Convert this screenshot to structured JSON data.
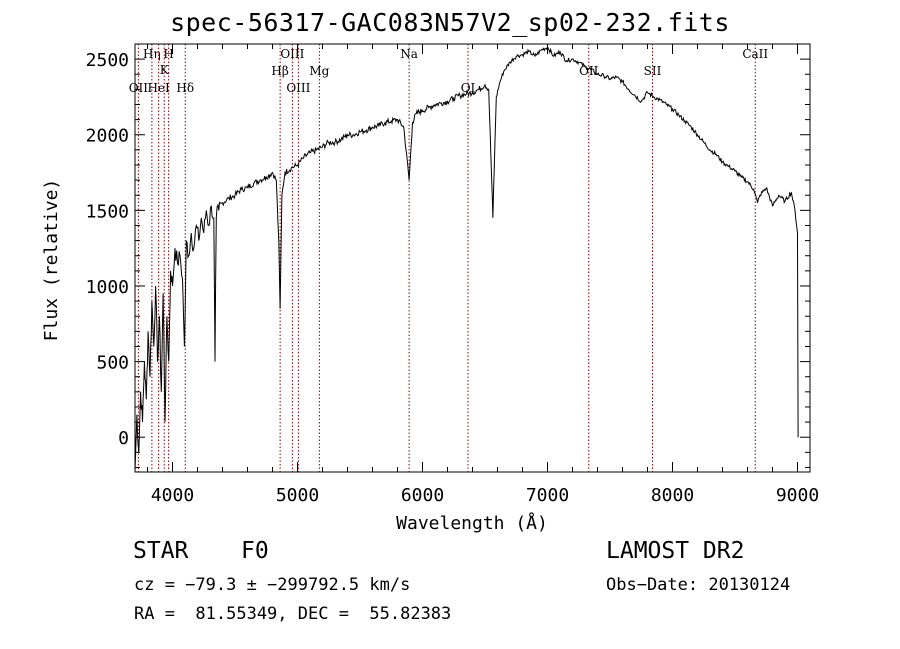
{
  "chart_data": {
    "type": "line",
    "title": "spec-56317-GAC083N57V2_sp02-232.fits",
    "xlabel": "Wavelength (Å)",
    "ylabel": "Flux (relative)",
    "xlim": [
      3700,
      9100
    ],
    "ylim": [
      -230,
      2600
    ],
    "xticks": [
      4000,
      5000,
      6000,
      7000,
      8000,
      9000
    ],
    "xtick_labels": [
      "4000",
      "5000",
      "6000",
      "7000",
      "8000",
      "9000"
    ],
    "yticks": [
      0,
      500,
      1000,
      1500,
      2000,
      2500
    ],
    "ytick_labels": [
      "0",
      "500",
      "1000",
      "1500",
      "2000",
      "2500"
    ],
    "line_color": "#000000",
    "marker_color": "#8b0000",
    "series": [
      {
        "name": "flux",
        "x": [
          3700,
          3715,
          3730,
          3745,
          3760,
          3775,
          3790,
          3805,
          3820,
          3835,
          3850,
          3865,
          3880,
          3895,
          3910,
          3925,
          3940,
          3955,
          3970,
          3985,
          4000,
          4020,
          4040,
          4060,
          4080,
          4095,
          4101,
          4110,
          4130,
          4150,
          4170,
          4190,
          4210,
          4230,
          4250,
          4270,
          4290,
          4310,
          4330,
          4340,
          4350,
          4370,
          4400,
          4450,
          4500,
          4550,
          4600,
          4650,
          4700,
          4750,
          4800,
          4830,
          4850,
          4861,
          4875,
          4900,
          4950,
          5000,
          5050,
          5100,
          5150,
          5200,
          5250,
          5300,
          5350,
          5400,
          5450,
          5500,
          5550,
          5600,
          5650,
          5700,
          5750,
          5800,
          5850,
          5893,
          5920,
          5950,
          6000,
          6050,
          6100,
          6150,
          6200,
          6250,
          6300,
          6350,
          6400,
          6450,
          6500,
          6530,
          6563,
          6590,
          6620,
          6650,
          6700,
          6750,
          6800,
          6850,
          6900,
          6950,
          7000,
          7050,
          7100,
          7150,
          7200,
          7250,
          7300,
          7350,
          7400,
          7450,
          7500,
          7550,
          7600,
          7650,
          7700,
          7750,
          7800,
          7850,
          7900,
          7950,
          8000,
          8050,
          8100,
          8150,
          8200,
          8250,
          8300,
          8350,
          8400,
          8450,
          8500,
          8550,
          8600,
          8650,
          8680,
          8700,
          8750,
          8800,
          8850,
          8900,
          8950,
          8980,
          9000,
          9005
        ],
        "y": [
          -230,
          150,
          -100,
          300,
          100,
          500,
          250,
          700,
          400,
          900,
          600,
          1000,
          500,
          800,
          300,
          950,
          100,
          800,
          500,
          1100,
          1000,
          1250,
          1150,
          1200,
          1050,
          600,
          800,
          1300,
          1200,
          1350,
          1250,
          1400,
          1300,
          1450,
          1350,
          1500,
          1400,
          1530,
          1450,
          500,
          1450,
          1500,
          1550,
          1580,
          1600,
          1640,
          1650,
          1680,
          1700,
          1720,
          1750,
          1700,
          1300,
          850,
          1600,
          1750,
          1780,
          1800,
          1850,
          1880,
          1900,
          1920,
          1950,
          1950,
          1970,
          2000,
          2000,
          2020,
          2030,
          2050,
          2060,
          2080,
          2090,
          2100,
          2050,
          1700,
          2080,
          2140,
          2160,
          2180,
          2200,
          2210,
          2220,
          2240,
          2260,
          2270,
          2280,
          2300,
          2330,
          2300,
          1450,
          2250,
          2350,
          2420,
          2480,
          2520,
          2530,
          2550,
          2520,
          2560,
          2580,
          2520,
          2550,
          2490,
          2500,
          2480,
          2450,
          2430,
          2400,
          2390,
          2370,
          2380,
          2350,
          2300,
          2260,
          2220,
          2280,
          2250,
          2230,
          2200,
          2170,
          2130,
          2090,
          2050,
          2000,
          1950,
          1900,
          1870,
          1820,
          1790,
          1760,
          1720,
          1690,
          1640,
          1550,
          1600,
          1650,
          1530,
          1600,
          1560,
          1620,
          1500,
          1350,
          0
        ]
      }
    ],
    "line_markers": [
      {
        "label": "OII",
        "wavelength": 3727,
        "font": "serif"
      },
      {
        "label": "Hη",
        "wavelength": 3835,
        "font": "serif"
      },
      {
        "label": "HeI",
        "wavelength": 3889,
        "font": "serif"
      },
      {
        "label": "K",
        "wavelength": 3934,
        "font": "serif"
      },
      {
        "label": "H",
        "wavelength": 3969,
        "font": "serif"
      },
      {
        "label": "Hδ",
        "wavelength": 4102,
        "font": "serif"
      },
      {
        "label": "Hβ",
        "wavelength": 4861,
        "font": "serif"
      },
      {
        "label": "OIII",
        "wavelength": 4959,
        "font": "serif"
      },
      {
        "label": "OIII",
        "wavelength": 5007,
        "font": "serif"
      },
      {
        "label": "Mg",
        "wavelength": 5175,
        "font": "serif"
      },
      {
        "label": "Na",
        "wavelength": 5893,
        "font": "serif"
      },
      {
        "label": "OI",
        "wavelength": 6364,
        "font": "serif"
      },
      {
        "label": "OII",
        "wavelength": 7330,
        "font": "serif"
      },
      {
        "label": "SII",
        "wavelength": 7840,
        "font": "serif"
      },
      {
        "label": "CaII",
        "wavelength": 8662,
        "font": "serif"
      }
    ]
  },
  "info": {
    "object_class": "STAR",
    "subclass": "F0",
    "survey": "LAMOST DR2",
    "cz": "cz = −79.3 ± −299792.5 km/s",
    "obs_date": "Obs−Date: 20130124",
    "radec": "RA =  81.55349, DEC =  55.82383"
  }
}
